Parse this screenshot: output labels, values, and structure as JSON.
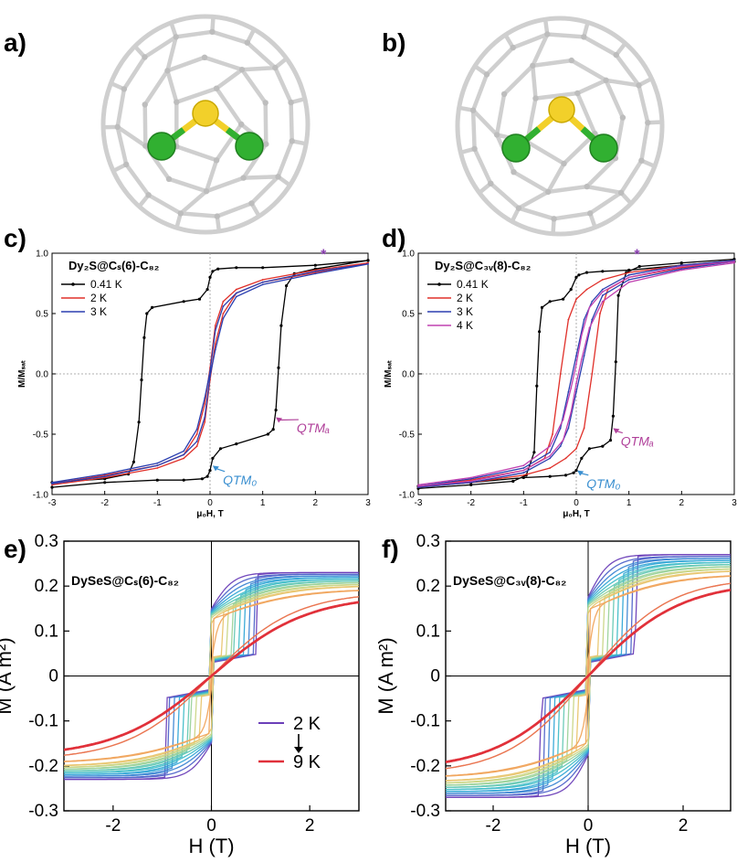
{
  "panel_labels": {
    "a": "a)",
    "b": "b)",
    "c": "c)",
    "d": "d)",
    "e": "e)",
    "f": "f)"
  },
  "colors": {
    "cage": "#cfcfcf",
    "sulfur": "#f2d02a",
    "dy": "#31b031",
    "qtm0": "#3a8fd0",
    "qtma": "#b0409a",
    "star": "#8a3fb0"
  },
  "chart_data": [
    {
      "id": "c",
      "type": "line",
      "title": "Dy₂S@Cₛ(6)-C₈₂",
      "xlabel": "μ₀H, T",
      "ylabel": "M/Mₛₐₜ",
      "xlim": [
        -3,
        3
      ],
      "ylim": [
        -1.0,
        1.0
      ],
      "xticks": [
        "-3",
        "-2",
        "-1",
        "0",
        "1",
        "2",
        "3"
      ],
      "yticks": [
        "-1.0",
        "-0.5",
        "0.0",
        "0.5",
        "1.0"
      ],
      "legend": "top-left",
      "series": [
        {
          "name": "0.41 K",
          "color": "#000000",
          "markers": true,
          "x": [
            -3,
            -2,
            -1.55,
            -1.45,
            -1.35,
            -1.3,
            -1.25,
            -1.2,
            -1.1,
            -0.5,
            -0.2,
            -0.05,
            0,
            0.05,
            0.15,
            0.5,
            1,
            2,
            3,
            3,
            2,
            1.6,
            1.45,
            1.35,
            1.3,
            1.25,
            1.2,
            1.1,
            0.5,
            0.2,
            0.05,
            0,
            -0.05,
            -0.15,
            -0.5,
            -1,
            -2,
            -3
          ],
          "y": [
            -0.9,
            -0.87,
            -0.83,
            -0.73,
            -0.4,
            -0.05,
            0.3,
            0.5,
            0.55,
            0.6,
            0.62,
            0.7,
            0.8,
            0.85,
            0.87,
            0.88,
            0.88,
            0.9,
            0.94,
            0.94,
            0.87,
            0.83,
            0.73,
            0.4,
            0.05,
            -0.3,
            -0.46,
            -0.5,
            -0.58,
            -0.62,
            -0.7,
            -0.8,
            -0.85,
            -0.87,
            -0.88,
            -0.88,
            -0.9,
            -0.94
          ]
        },
        {
          "name": "2 K",
          "color": "#e0302a",
          "markers": false,
          "x": [
            -3,
            -2,
            -1,
            -0.5,
            -0.25,
            -0.1,
            0,
            0.1,
            0.25,
            0.5,
            1,
            2,
            3,
            3,
            2,
            1,
            0.5,
            0.25,
            0.1,
            0,
            -0.1,
            -0.25,
            -0.5,
            -1,
            -2,
            -3
          ],
          "y": [
            -0.91,
            -0.84,
            -0.76,
            -0.67,
            -0.5,
            -0.25,
            0.05,
            0.4,
            0.6,
            0.7,
            0.78,
            0.86,
            0.92,
            0.92,
            0.84,
            0.76,
            0.67,
            0.5,
            0.25,
            -0.05,
            -0.4,
            -0.6,
            -0.7,
            -0.78,
            -0.86,
            -0.92
          ]
        },
        {
          "name": "3 K",
          "color": "#2b3fb0",
          "markers": false,
          "x": [
            -3,
            -2,
            -1,
            -0.5,
            -0.25,
            -0.1,
            0,
            0.1,
            0.25,
            0.5,
            1,
            2,
            3,
            3,
            2,
            1,
            0.5,
            0.25,
            0.1,
            0,
            -0.1,
            -0.25,
            -0.5,
            -1,
            -2,
            -3
          ],
          "y": [
            -0.9,
            -0.83,
            -0.74,
            -0.64,
            -0.46,
            -0.2,
            0.02,
            0.36,
            0.56,
            0.67,
            0.76,
            0.85,
            0.91,
            0.91,
            0.83,
            0.74,
            0.64,
            0.46,
            0.2,
            -0.02,
            -0.36,
            -0.56,
            -0.67,
            -0.76,
            -0.85,
            -0.91
          ]
        }
      ],
      "annotations": [
        {
          "text": "QTM₀",
          "x": 0.35,
          "y": -0.9,
          "ax": 0.05,
          "ay": -0.76,
          "color": "#3a8fd0"
        },
        {
          "text": "QTMₐ",
          "x": 1.75,
          "y": -0.47,
          "ax": 1.25,
          "ay": -0.36,
          "color": "#b0409a"
        },
        {
          "text": "*",
          "x": 2.1,
          "y": 0.95,
          "color": "#8a3fb0"
        }
      ]
    },
    {
      "id": "d",
      "type": "line",
      "title": "Dy₂S@C₃ᵥ(8)-C₈₂",
      "xlabel": "μ₀H, T",
      "ylabel": "M/Mₛₐₜ",
      "xlim": [
        -3,
        3
      ],
      "ylim": [
        -1.0,
        1.0
      ],
      "xticks": [
        "-3",
        "-2",
        "-1",
        "0",
        "1",
        "2",
        "3"
      ],
      "yticks": [
        "-1.0",
        "-0.5",
        "0.0",
        "0.5",
        "1.0"
      ],
      "legend": "top-left",
      "series": [
        {
          "name": "0.41 K",
          "color": "#000000",
          "markers": true,
          "x": [
            -3,
            -2,
            -1.2,
            -0.95,
            -0.8,
            -0.75,
            -0.7,
            -0.65,
            -0.5,
            -0.25,
            -0.1,
            0,
            0.05,
            0.2,
            0.5,
            1,
            2,
            3,
            3,
            2,
            1.2,
            0.95,
            0.8,
            0.75,
            0.7,
            0.65,
            0.5,
            0.25,
            0.1,
            0,
            -0.05,
            -0.2,
            -0.5,
            -1,
            -2,
            -3
          ],
          "y": [
            -0.95,
            -0.92,
            -0.89,
            -0.84,
            -0.65,
            -0.1,
            0.35,
            0.55,
            0.6,
            0.62,
            0.7,
            0.8,
            0.82,
            0.84,
            0.85,
            0.86,
            0.9,
            0.93,
            0.95,
            0.92,
            0.89,
            0.84,
            0.65,
            0.1,
            -0.35,
            -0.55,
            -0.6,
            -0.62,
            -0.7,
            -0.8,
            -0.82,
            -0.84,
            -0.85,
            -0.86,
            -0.9,
            -0.93
          ]
        },
        {
          "name": "2 K",
          "color": "#e0302a",
          "markers": false,
          "x": [
            -3,
            -2,
            -1,
            -0.6,
            -0.45,
            -0.3,
            -0.15,
            0,
            0.2,
            0.5,
            1,
            2,
            3,
            3,
            2,
            1,
            0.6,
            0.45,
            0.3,
            0.15,
            0,
            -0.2,
            -0.5,
            -1,
            -2,
            -3
          ],
          "y": [
            -0.93,
            -0.88,
            -0.8,
            -0.7,
            -0.5,
            0.0,
            0.45,
            0.62,
            0.7,
            0.78,
            0.84,
            0.9,
            0.94,
            0.93,
            0.88,
            0.8,
            0.7,
            0.5,
            0.0,
            -0.45,
            -0.62,
            -0.7,
            -0.78,
            -0.84,
            -0.9,
            -0.94
          ]
        },
        {
          "name": "3 K",
          "color": "#2b3fb0",
          "markers": false,
          "x": [
            -3,
            -2,
            -1,
            -0.5,
            -0.3,
            -0.15,
            0,
            0.15,
            0.3,
            0.5,
            1,
            2,
            3,
            3,
            2,
            1,
            0.5,
            0.3,
            0.15,
            0,
            -0.15,
            -0.3,
            -0.5,
            -1,
            -2,
            -3
          ],
          "y": [
            -0.93,
            -0.87,
            -0.78,
            -0.65,
            -0.45,
            -0.15,
            0.15,
            0.45,
            0.6,
            0.7,
            0.82,
            0.9,
            0.94,
            0.93,
            0.87,
            0.78,
            0.65,
            0.45,
            0.15,
            -0.15,
            -0.45,
            -0.6,
            -0.7,
            -0.82,
            -0.9,
            -0.94
          ]
        },
        {
          "name": "4 K",
          "color": "#c040b0",
          "markers": false,
          "x": [
            -3,
            -2,
            -1,
            -0.5,
            -0.25,
            -0.1,
            0,
            0.1,
            0.25,
            0.5,
            1,
            2,
            3,
            3,
            2,
            1,
            0.5,
            0.25,
            0.1,
            0,
            -0.1,
            -0.25,
            -0.5,
            -1,
            -2,
            -3
          ],
          "y": [
            -0.92,
            -0.86,
            -0.76,
            -0.6,
            -0.38,
            -0.12,
            0.08,
            0.32,
            0.55,
            0.68,
            0.8,
            0.89,
            0.93,
            0.92,
            0.86,
            0.76,
            0.6,
            0.38,
            0.12,
            -0.08,
            -0.32,
            -0.55,
            -0.68,
            -0.8,
            -0.89,
            -0.93
          ]
        }
      ],
      "annotations": [
        {
          "text": "QTM₀",
          "x": 0.3,
          "y": -0.93,
          "ax": 0.02,
          "ay": -0.8,
          "color": "#3a8fd0"
        },
        {
          "text": "QTMₐ",
          "x": 0.95,
          "y": -0.58,
          "ax": 0.7,
          "ay": -0.45,
          "color": "#b0409a"
        },
        {
          "text": "*",
          "x": 1.1,
          "y": 0.95,
          "color": "#8a3fb0"
        }
      ]
    },
    {
      "id": "e",
      "type": "line",
      "title": "DySeS@Cₛ(6)-C₈₂",
      "xlabel": "H (T)",
      "ylabel": "M (A m²)",
      "xlim": [
        -3,
        3
      ],
      "ylim": [
        -0.3,
        0.3
      ],
      "xticks": [
        "-2",
        "0",
        "2"
      ],
      "xtickvals": [
        -2,
        0,
        2
      ],
      "yticks": [
        "-0.3",
        "-0.2",
        "-0.1",
        "0",
        "0.1",
        "0.2",
        "0.3"
      ],
      "legend": "bottom-right",
      "legend_labels": [
        "2 K",
        "9 K"
      ],
      "temperatures": [
        2,
        2.5,
        3,
        3.5,
        4,
        4.5,
        5,
        5.5,
        6,
        7,
        8,
        9
      ]
    },
    {
      "id": "f",
      "type": "line",
      "title": "DySeS@C₃ᵥ(8)-C₈₂",
      "xlabel": "H (T)",
      "ylabel": "M (A m²)",
      "xlim": [
        -3,
        3
      ],
      "ylim": [
        -0.3,
        0.3
      ],
      "xticks": [
        "-2",
        "0",
        "2"
      ],
      "xtickvals": [
        -2,
        0,
        2
      ],
      "yticks": [
        "-0.3",
        "-0.2",
        "-0.1",
        "0",
        "0.1",
        "0.2",
        "0.3"
      ],
      "temperatures": [
        2,
        2.5,
        3,
        3.5,
        4,
        4.5,
        5,
        5.5,
        6,
        7,
        8,
        9
      ]
    }
  ]
}
